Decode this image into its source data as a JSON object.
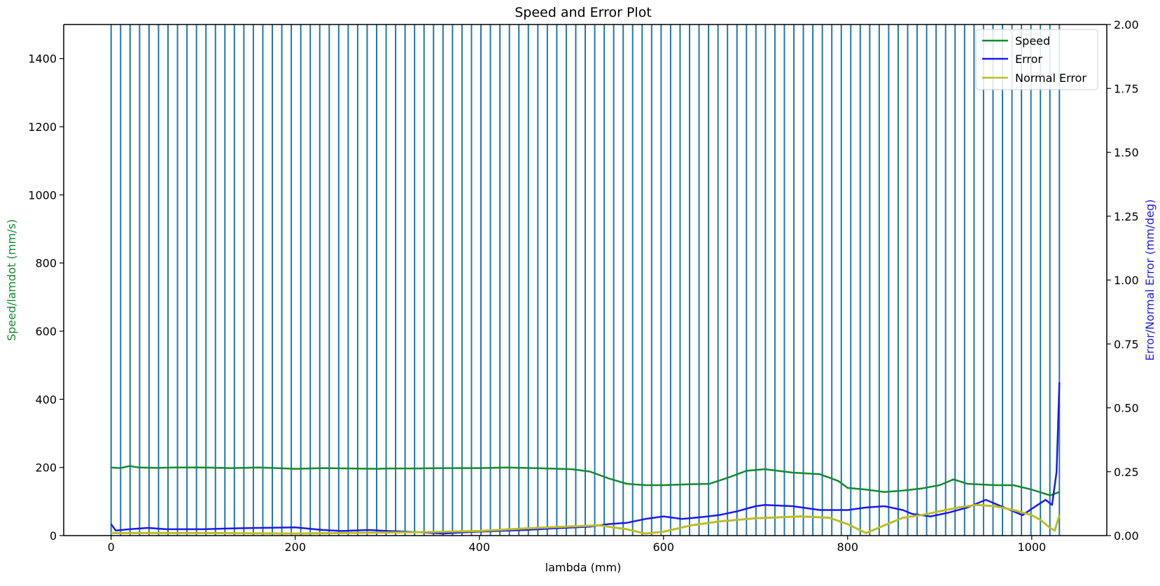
{
  "chart_data": {
    "type": "line",
    "title": "Speed and Error Plot",
    "xlabel": "lambda (mm)",
    "ylabel_left": "Speed/lamdot (mm/s)",
    "ylabel_right": "Error/Normal Error (mm/deg)",
    "xlim": [
      -51.5,
      1081.5
    ],
    "ylim_left": [
      0,
      1500
    ],
    "ylim_right": [
      0,
      2.0
    ],
    "xticks": [
      0,
      200,
      400,
      600,
      800,
      1000
    ],
    "yticks_left": [
      0,
      200,
      400,
      600,
      800,
      1000,
      1200,
      1400
    ],
    "yticks_right": [
      "0.00",
      "0.25",
      "0.50",
      "0.75",
      "1.00",
      "1.25",
      "1.50",
      "1.75",
      "2.00"
    ],
    "grid": false,
    "legend_position": "top-right",
    "vertical_lines": {
      "color": "#1f77b4",
      "start": 0,
      "step": 10.3,
      "count": 101
    },
    "series": [
      {
        "name": "Speed",
        "axis": "left",
        "color": "#138a2e",
        "x": [
          0,
          10,
          20,
          30,
          50,
          70,
          100,
          130,
          160,
          180,
          200,
          230,
          260,
          290,
          300,
          330,
          360,
          400,
          430,
          460,
          500,
          520,
          540,
          560,
          580,
          600,
          620,
          650,
          670,
          690,
          710,
          740,
          770,
          790,
          800,
          820,
          840,
          860,
          880,
          900,
          915,
          930,
          960,
          980,
          1000,
          1020,
          1030
        ],
        "y": [
          200,
          198,
          204,
          200,
          199,
          200,
          200,
          198,
          200,
          198,
          196,
          198,
          197,
          196,
          197,
          197,
          198,
          198,
          200,
          198,
          195,
          188,
          168,
          152,
          148,
          148,
          150,
          152,
          170,
          190,
          195,
          185,
          180,
          160,
          140,
          135,
          128,
          132,
          138,
          148,
          165,
          152,
          148,
          148,
          135,
          118,
          128
        ]
      },
      {
        "name": "Error",
        "axis": "right",
        "color": "#1a1aee",
        "x": [
          0,
          5,
          20,
          40,
          60,
          80,
          100,
          130,
          160,
          200,
          230,
          250,
          280,
          300,
          330,
          360,
          390,
          420,
          450,
          480,
          520,
          540,
          560,
          580,
          600,
          620,
          640,
          660,
          680,
          700,
          710,
          740,
          770,
          800,
          820,
          840,
          860,
          870,
          890,
          910,
          930,
          950,
          970,
          990,
          1000,
          1015,
          1022,
          1027,
          1030
        ],
        "y": [
          0.045,
          0.02,
          0.025,
          0.03,
          0.025,
          0.025,
          0.025,
          0.028,
          0.03,
          0.032,
          0.022,
          0.018,
          0.022,
          0.018,
          0.014,
          0.008,
          0.014,
          0.018,
          0.022,
          0.028,
          0.035,
          0.045,
          0.05,
          0.065,
          0.075,
          0.065,
          0.072,
          0.08,
          0.095,
          0.115,
          0.12,
          0.115,
          0.1,
          0.1,
          0.11,
          0.115,
          0.1,
          0.085,
          0.075,
          0.09,
          0.11,
          0.14,
          0.11,
          0.08,
          0.105,
          0.14,
          0.12,
          0.25,
          0.6
        ]
      },
      {
        "name": "Normal Error",
        "axis": "right",
        "color": "#bcbd22",
        "x": [
          0,
          100,
          200,
          250,
          300,
          350,
          400,
          450,
          500,
          530,
          560,
          580,
          600,
          630,
          660,
          700,
          750,
          780,
          800,
          820,
          840,
          860,
          880,
          900,
          920,
          940,
          960,
          980,
          1000,
          1010,
          1020,
          1025,
          1030
        ],
        "y": [
          0.01,
          0.01,
          0.008,
          0.01,
          0.012,
          0.014,
          0.018,
          0.028,
          0.036,
          0.04,
          0.025,
          0.008,
          0.015,
          0.04,
          0.055,
          0.068,
          0.075,
          0.07,
          0.045,
          0.01,
          0.04,
          0.07,
          0.08,
          0.095,
          0.11,
          0.12,
          0.115,
          0.1,
          0.08,
          0.06,
          0.03,
          0.02,
          0.08
        ]
      }
    ]
  }
}
